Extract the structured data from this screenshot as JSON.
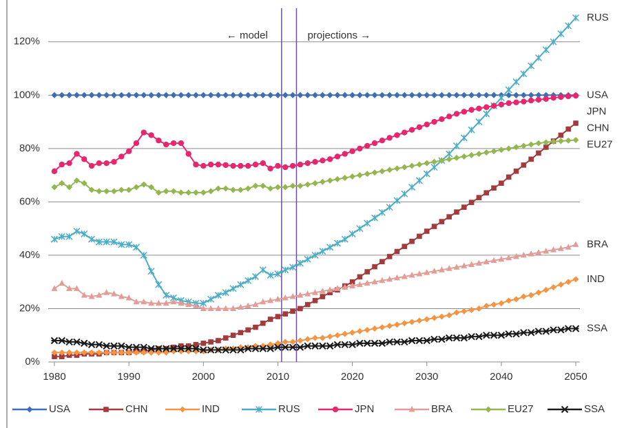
{
  "chart_data": {
    "type": "line",
    "x": [
      1980,
      1981,
      1982,
      1983,
      1984,
      1985,
      1986,
      1987,
      1988,
      1989,
      1990,
      1991,
      1992,
      1993,
      1994,
      1995,
      1996,
      1997,
      1998,
      1999,
      2000,
      2001,
      2002,
      2003,
      2004,
      2005,
      2006,
      2007,
      2008,
      2009,
      2010,
      2011,
      2012,
      2013,
      2014,
      2015,
      2016,
      2017,
      2018,
      2019,
      2020,
      2021,
      2022,
      2023,
      2024,
      2025,
      2026,
      2027,
      2028,
      2029,
      2030,
      2031,
      2032,
      2033,
      2034,
      2035,
      2036,
      2037,
      2038,
      2039,
      2040,
      2041,
      2042,
      2043,
      2044,
      2045,
      2046,
      2047,
      2048,
      2049,
      2050
    ],
    "xlim": [
      1980,
      2050
    ],
    "xticks": [
      1980,
      1990,
      2000,
      2010,
      2020,
      2030,
      2040,
      2050
    ],
    "ylim": [
      0,
      130
    ],
    "yticks": [
      {
        "value": 0,
        "label": "0%"
      },
      {
        "value": 20,
        "label": "20%"
      },
      {
        "value": 40,
        "label": "40%"
      },
      {
        "value": 60,
        "label": "60%"
      },
      {
        "value": 80,
        "label": "80%"
      },
      {
        "value": 100,
        "label": "100%"
      },
      {
        "value": 120,
        "label": "120%"
      }
    ],
    "grid": true,
    "vlines": [
      2010.5,
      2012.5
    ],
    "annotations": [
      "← model",
      "projections →"
    ],
    "series": [
      {
        "name": "USA",
        "color": "#3d6db4",
        "marker": "diamond",
        "values": [
          100,
          100,
          100,
          100,
          100,
          100,
          100,
          100,
          100,
          100,
          100,
          100,
          100,
          100,
          100,
          100,
          100,
          100,
          100,
          100,
          100,
          100,
          100,
          100,
          100,
          100,
          100,
          100,
          100,
          100,
          100,
          100,
          100,
          100,
          100,
          100,
          100,
          100,
          100,
          100,
          100,
          100,
          100,
          100,
          100,
          100,
          100,
          100,
          100,
          100,
          100,
          100,
          100,
          100,
          100,
          100,
          100,
          100,
          100,
          100,
          100,
          100,
          100,
          100,
          100,
          100,
          100,
          100,
          100,
          100,
          100
        ]
      },
      {
        "name": "CHN",
        "color": "#a23b3b",
        "marker": "square",
        "values": [
          2,
          2,
          2.5,
          2.5,
          3,
          3,
          3,
          3.5,
          3.5,
          3.5,
          3.5,
          4,
          4,
          4.5,
          5,
          5,
          5.5,
          6,
          6,
          6.5,
          7,
          7.5,
          8,
          9,
          10,
          11,
          12,
          13,
          14.5,
          16,
          17,
          18,
          19,
          20,
          21.5,
          23,
          24.5,
          26,
          27,
          28.5,
          30,
          31.9,
          33.8,
          35.7,
          37.6,
          39.5,
          41.4,
          43.3,
          45.2,
          47.1,
          49,
          50.8,
          52.6,
          54.4,
          56.2,
          58,
          59.8,
          61.6,
          63.4,
          65.2,
          67,
          69.3,
          71.5,
          73.8,
          76,
          78.3,
          80.5,
          82.8,
          85,
          87.3,
          89.5
        ]
      },
      {
        "name": "IND",
        "color": "#f39542",
        "marker": "diamond",
        "values": [
          3.5,
          3.5,
          3.5,
          3.5,
          3.5,
          3.5,
          3.5,
          3.5,
          3.5,
          3.5,
          3.5,
          3.5,
          3.5,
          3.5,
          3.5,
          3.5,
          4,
          4,
          4,
          4,
          4,
          4.5,
          4.5,
          5,
          5,
          5.5,
          5.5,
          6,
          6,
          6.5,
          7,
          7.5,
          7.5,
          8,
          8.5,
          9,
          9,
          9.5,
          10,
          10.5,
          11,
          11.5,
          12,
          12.5,
          13,
          13.5,
          14,
          14.5,
          15,
          15.5,
          16,
          16.5,
          17,
          17.5,
          18.5,
          19,
          19.5,
          20,
          21,
          21.5,
          22,
          23,
          23.5,
          24.5,
          25,
          26,
          27,
          28,
          29,
          30,
          31
        ]
      },
      {
        "name": "RUS",
        "color": "#4bacc6",
        "marker": "asterisk",
        "values": [
          46,
          47,
          47,
          49,
          48,
          46,
          45,
          45,
          45,
          44,
          44,
          43,
          40,
          34,
          29,
          25,
          24,
          23,
          22.5,
          22,
          22,
          23.5,
          25,
          26,
          27.5,
          29,
          30.5,
          32,
          34.5,
          32.5,
          33,
          34.5,
          35.5,
          37,
          38.5,
          40,
          41.5,
          43,
          44.5,
          46,
          48,
          50,
          52,
          54,
          56,
          58,
          60.5,
          63,
          65.5,
          68,
          70.5,
          73,
          75.5,
          78,
          81,
          84,
          87,
          90,
          93,
          96,
          99,
          102,
          105,
          108,
          111,
          114,
          117,
          120,
          123,
          126,
          129
        ]
      },
      {
        "name": "JPN",
        "color": "#e8256f",
        "marker": "circle",
        "values": [
          71.5,
          74,
          74.5,
          78,
          76,
          73.5,
          74.5,
          74.5,
          75,
          77,
          79,
          82,
          86,
          85,
          83,
          81.5,
          82,
          82,
          78,
          74,
          73.5,
          74,
          74,
          73.8,
          73.5,
          73.5,
          73.5,
          74,
          74.5,
          72.5,
          73.5,
          73,
          73.5,
          74,
          74.5,
          75,
          75.5,
          76,
          77,
          78,
          79,
          80,
          81,
          82,
          83,
          84,
          85,
          86,
          87,
          88,
          89,
          90,
          91,
          92,
          93,
          93.8,
          94.5,
          95,
          95.5,
          96,
          96.5,
          97,
          97.3,
          97.6,
          98,
          98.3,
          98.6,
          99,
          99.3,
          99.6,
          99.8
        ]
      },
      {
        "name": "BRA",
        "color": "#e29d97",
        "marker": "triangle",
        "values": [
          27.5,
          29.5,
          27.5,
          27.5,
          25,
          24.5,
          25,
          26,
          25.5,
          24.5,
          24,
          22.5,
          22.5,
          22,
          22,
          22,
          22.5,
          22,
          21.5,
          21,
          20,
          20,
          20,
          20,
          20,
          20.5,
          21,
          21.5,
          22.5,
          23,
          23.5,
          24,
          24.5,
          25,
          25.5,
          26,
          26.5,
          27,
          27.5,
          28,
          28.5,
          29,
          29.5,
          30,
          30.5,
          31,
          31.5,
          32,
          32.5,
          33,
          33.5,
          34,
          34.5,
          35,
          35.5,
          36,
          36.5,
          37,
          37.5,
          38,
          38.5,
          39,
          39.5,
          40,
          40.5,
          41,
          41.5,
          42,
          42.5,
          43,
          44
        ]
      },
      {
        "name": "EU27",
        "color": "#93b750",
        "marker": "diamond",
        "values": [
          65.5,
          67,
          65.5,
          68,
          67,
          64.5,
          64,
          64,
          64,
          64.5,
          64.5,
          65.5,
          66.5,
          65.5,
          63.5,
          64,
          64,
          63.5,
          63.5,
          63.5,
          63.5,
          64,
          65,
          65,
          64.5,
          64.5,
          65,
          66,
          66,
          65,
          65.5,
          65.5,
          66,
          66,
          66.5,
          67,
          67.5,
          68,
          68.5,
          69,
          69.5,
          70,
          70.5,
          71,
          71.5,
          72,
          72.5,
          73,
          73.5,
          74,
          74.5,
          75,
          75.5,
          76,
          76.5,
          77,
          77.5,
          78,
          78.5,
          79,
          79.5,
          80,
          80.5,
          81,
          81.5,
          82,
          82.3,
          82.6,
          82.8,
          83,
          83.2
        ]
      },
      {
        "name": "SSA",
        "color": "#1a1a1a",
        "marker": "star",
        "values": [
          8,
          8,
          7.5,
          7.5,
          7,
          6.5,
          6.5,
          6,
          6,
          6,
          5.5,
          5.5,
          5.5,
          5,
          5,
          5,
          5,
          5,
          5,
          5,
          4.5,
          4.5,
          4.5,
          4.5,
          4.5,
          4.5,
          5,
          5,
          5,
          5,
          5.5,
          5.5,
          5.5,
          5.5,
          6,
          6,
          6,
          6,
          6.5,
          6.5,
          6.5,
          7,
          7,
          7,
          7,
          7.5,
          7.5,
          7.5,
          8,
          8,
          8,
          8.5,
          8.5,
          9,
          9,
          9,
          9.5,
          9.5,
          10,
          10,
          10,
          10.5,
          10.5,
          11,
          11,
          11.5,
          11.5,
          12,
          12,
          12.5,
          12.5
        ]
      }
    ]
  }
}
